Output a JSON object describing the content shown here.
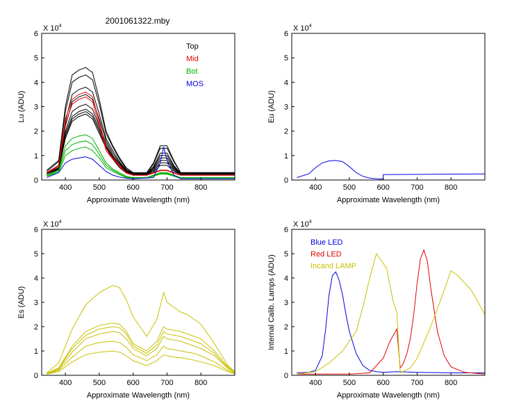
{
  "figure_title": "2001061322.mby",
  "colors": {
    "black": "#000000",
    "red": "#e00000",
    "green": "#00b000",
    "blue": "#0000e0",
    "yellow": "#c8c000"
  },
  "chart_data": [
    {
      "id": "lu",
      "type": "line",
      "title": "2001061322.mby",
      "xlabel": "Approximate Wavelength (nm)",
      "ylabel": "Lu (ADU)",
      "exponent_label": "X 10",
      "exponent_power": "4",
      "xlim": [
        330,
        900
      ],
      "ylim": [
        0,
        6
      ],
      "xticks": [
        400,
        500,
        600,
        700,
        800
      ],
      "yticks": [
        0,
        1,
        2,
        3,
        4,
        5,
        6
      ],
      "legend": [
        {
          "label": "Top",
          "color": "#000000"
        },
        {
          "label": "Mid",
          "color": "#e00000"
        },
        {
          "label": "Bot",
          "color": "#00b000"
        },
        {
          "label": "MOS",
          "color": "#0000e0"
        }
      ],
      "series": [
        {
          "name": "Top",
          "color": "#000000",
          "count": 8,
          "x": [
            345,
            380,
            400,
            420,
            440,
            460,
            480,
            500,
            520,
            540,
            560,
            580,
            600,
            640,
            660,
            680,
            700,
            720,
            740,
            900
          ],
          "yseries": [
            [
              0.4,
              0.8,
              3.0,
              4.3,
              4.5,
              4.6,
              4.4,
              3.3,
              2.0,
              1.4,
              0.9,
              0.5,
              0.3,
              0.3,
              0.7,
              1.4,
              1.4,
              0.8,
              0.3,
              0.3
            ],
            [
              0.35,
              0.75,
              2.8,
              4.0,
              4.2,
              4.3,
              4.1,
              3.1,
              1.9,
              1.35,
              0.85,
              0.45,
              0.28,
              0.28,
              0.65,
              1.3,
              1.3,
              0.75,
              0.3,
              0.3
            ],
            [
              0.3,
              0.6,
              2.4,
              3.5,
              3.7,
              3.8,
              3.6,
              2.7,
              1.7,
              1.2,
              0.75,
              0.4,
              0.26,
              0.26,
              0.55,
              1.1,
              1.1,
              0.6,
              0.28,
              0.28
            ],
            [
              0.3,
              0.55,
              2.2,
              3.2,
              3.4,
              3.5,
              3.3,
              2.5,
              1.6,
              1.1,
              0.7,
              0.38,
              0.25,
              0.25,
              0.5,
              1.0,
              1.0,
              0.55,
              0.27,
              0.27
            ],
            [
              0.28,
              0.5,
              2.0,
              2.8,
              3.0,
              3.1,
              2.9,
              2.2,
              1.5,
              1.0,
              0.65,
              0.35,
              0.24,
              0.24,
              0.45,
              0.9,
              0.9,
              0.5,
              0.26,
              0.26
            ],
            [
              0.26,
              0.48,
              1.9,
              2.6,
              2.8,
              2.9,
              2.7,
              2.1,
              1.4,
              0.95,
              0.6,
              0.33,
              0.23,
              0.23,
              0.4,
              0.8,
              0.8,
              0.45,
              0.25,
              0.25
            ],
            [
              0.25,
              0.45,
              1.8,
              2.5,
              2.7,
              2.8,
              2.6,
              2.0,
              1.35,
              0.9,
              0.55,
              0.3,
              0.22,
              0.22,
              0.35,
              0.7,
              0.7,
              0.4,
              0.24,
              0.24
            ],
            [
              0.25,
              0.42,
              1.7,
              2.4,
              2.6,
              2.7,
              2.5,
              1.9,
              1.3,
              0.85,
              0.5,
              0.28,
              0.21,
              0.21,
              0.3,
              0.6,
              0.6,
              0.35,
              0.23,
              0.23
            ]
          ]
        },
        {
          "name": "Mid",
          "color": "#e00000",
          "count": 2,
          "x": [
            345,
            380,
            400,
            420,
            440,
            460,
            480,
            500,
            520,
            540,
            560,
            580,
            600,
            640,
            660,
            680,
            700,
            720,
            740,
            900
          ],
          "yseries": [
            [
              0.3,
              0.6,
              2.5,
              3.3,
              3.5,
              3.6,
              3.4,
              2.4,
              1.3,
              0.9,
              0.6,
              0.3,
              0.2,
              0.2,
              0.3,
              0.4,
              0.4,
              0.3,
              0.2,
              0.2
            ],
            [
              0.28,
              0.55,
              2.3,
              3.1,
              3.3,
              3.4,
              3.2,
              2.25,
              1.2,
              0.85,
              0.55,
              0.28,
              0.19,
              0.19,
              0.28,
              0.38,
              0.38,
              0.28,
              0.19,
              0.19
            ]
          ]
        },
        {
          "name": "Bot",
          "color": "#00b000",
          "count": 3,
          "x": [
            345,
            380,
            400,
            420,
            440,
            460,
            480,
            500,
            520,
            540,
            560,
            580,
            600,
            640,
            660,
            680,
            700,
            720,
            740,
            900
          ],
          "yseries": [
            [
              0.2,
              0.4,
              1.4,
              1.7,
              1.8,
              1.85,
              1.7,
              1.2,
              0.7,
              0.45,
              0.3,
              0.15,
              0.1,
              0.1,
              0.2,
              0.3,
              0.3,
              0.2,
              0.1,
              0.1
            ],
            [
              0.18,
              0.35,
              1.2,
              1.45,
              1.55,
              1.6,
              1.45,
              1.05,
              0.6,
              0.4,
              0.25,
              0.12,
              0.09,
              0.09,
              0.18,
              0.27,
              0.27,
              0.18,
              0.09,
              0.09
            ],
            [
              0.16,
              0.3,
              1.0,
              1.2,
              1.3,
              1.35,
              1.2,
              0.9,
              0.5,
              0.35,
              0.22,
              0.1,
              0.08,
              0.08,
              0.15,
              0.24,
              0.24,
              0.15,
              0.08,
              0.08
            ]
          ]
        },
        {
          "name": "MOS",
          "color": "#0000e0",
          "count": 1,
          "x": [
            345,
            380,
            400,
            420,
            440,
            460,
            480,
            500,
            520,
            540,
            560,
            580,
            600,
            660,
            680,
            690,
            700,
            720,
            740,
            900
          ],
          "yseries": [
            [
              0.1,
              0.3,
              0.7,
              0.85,
              0.9,
              0.95,
              0.85,
              0.6,
              0.35,
              0.2,
              0.12,
              0.07,
              0.05,
              0.1,
              0.7,
              1.35,
              0.8,
              0.2,
              0.05,
              0.05
            ]
          ]
        }
      ]
    },
    {
      "id": "eu",
      "type": "line",
      "title": "",
      "xlabel": "Approximate Wavelength (nm)",
      "ylabel": "Eu  (ADU)",
      "exponent_label": "X 10",
      "exponent_power": "4",
      "xlim": [
        330,
        900
      ],
      "ylim": [
        0,
        6
      ],
      "xticks": [
        400,
        500,
        600,
        700,
        800
      ],
      "yticks": [
        0,
        1,
        2,
        3,
        4,
        5,
        6
      ],
      "legend": [],
      "series": [
        {
          "name": "Eu",
          "color": "#0000e0",
          "count": 1,
          "x": [
            345,
            380,
            400,
            420,
            440,
            460,
            480,
            500,
            520,
            540,
            560,
            580,
            599,
            600,
            900
          ],
          "yseries": [
            [
              0.1,
              0.25,
              0.5,
              0.7,
              0.78,
              0.8,
              0.75,
              0.55,
              0.3,
              0.15,
              0.08,
              0.05,
              0.03,
              0.22,
              0.25
            ]
          ]
        }
      ]
    },
    {
      "id": "es",
      "type": "line",
      "title": "",
      "xlabel": "Approximate Wavelength (nm)",
      "ylabel": "Es  (ADU)",
      "exponent_label": "X 10",
      "exponent_power": "4",
      "xlim": [
        330,
        900
      ],
      "ylim": [
        0,
        6
      ],
      "xticks": [
        400,
        500,
        600,
        700,
        800
      ],
      "yticks": [
        0,
        1,
        2,
        3,
        4,
        5,
        6
      ],
      "legend": [],
      "series": [
        {
          "name": "Es",
          "color": "#c8c000",
          "count": 6,
          "x": [
            345,
            380,
            420,
            460,
            500,
            540,
            560,
            580,
            600,
            640,
            670,
            690,
            700,
            720,
            740,
            760,
            780,
            800,
            840,
            880,
            900
          ],
          "yseries": [
            [
              0.1,
              0.5,
              1.9,
              2.9,
              3.4,
              3.7,
              3.6,
              3.1,
              2.4,
              1.6,
              2.3,
              3.4,
              3.0,
              2.8,
              2.6,
              2.5,
              2.3,
              2.1,
              1.3,
              0.4,
              0.15
            ],
            [
              0.08,
              0.3,
              1.2,
              1.8,
              2.05,
              2.15,
              2.1,
              1.8,
              1.3,
              1.0,
              1.4,
              2.0,
              1.9,
              1.85,
              1.8,
              1.7,
              1.6,
              1.5,
              1.0,
              0.35,
              0.12
            ],
            [
              0.08,
              0.28,
              1.1,
              1.65,
              1.9,
              2.0,
              1.95,
              1.7,
              1.2,
              0.9,
              1.25,
              1.8,
              1.7,
              1.65,
              1.6,
              1.5,
              1.4,
              1.3,
              0.9,
              0.3,
              0.1
            ],
            [
              0.07,
              0.25,
              0.95,
              1.5,
              1.7,
              1.8,
              1.75,
              1.5,
              1.1,
              0.8,
              1.1,
              1.6,
              1.5,
              1.45,
              1.4,
              1.3,
              1.2,
              1.1,
              0.8,
              0.28,
              0.1
            ],
            [
              0.06,
              0.2,
              0.75,
              1.2,
              1.35,
              1.4,
              1.35,
              1.15,
              0.85,
              0.6,
              0.85,
              1.2,
              1.1,
              1.05,
              1.0,
              0.95,
              0.9,
              0.8,
              0.55,
              0.2,
              0.08
            ],
            [
              0.05,
              0.15,
              0.55,
              0.85,
              0.95,
              1.0,
              0.95,
              0.8,
              0.6,
              0.4,
              0.6,
              0.85,
              0.8,
              0.75,
              0.72,
              0.68,
              0.62,
              0.55,
              0.4,
              0.15,
              0.06
            ]
          ]
        }
      ]
    },
    {
      "id": "lamps",
      "type": "line",
      "title": "",
      "xlabel": "Approximate Wavelength (nm)",
      "ylabel": "Internal Calib. Lamps (ADU)",
      "exponent_label": "X 10",
      "exponent_power": "4",
      "xlim": [
        330,
        900
      ],
      "ylim": [
        0,
        6
      ],
      "xticks": [
        400,
        500,
        600,
        700,
        800
      ],
      "yticks": [
        0,
        1,
        2,
        3,
        4,
        5,
        6
      ],
      "legend": [
        {
          "label": "Blue LED",
          "color": "#0000e0"
        },
        {
          "label": "Red LED",
          "color": "#e00000"
        },
        {
          "label": "Incand LAMP",
          "color": "#c8c000"
        }
      ],
      "series": [
        {
          "name": "Blue LED",
          "color": "#0000e0",
          "count": 1,
          "x": [
            345,
            380,
            400,
            420,
            430,
            440,
            450,
            460,
            470,
            480,
            490,
            500,
            520,
            540,
            560,
            580,
            600,
            640,
            700,
            800,
            900
          ],
          "yseries": [
            [
              0.1,
              0.12,
              0.2,
              0.8,
              1.9,
              3.3,
              4.1,
              4.25,
              3.9,
              3.3,
              2.5,
              1.8,
              0.9,
              0.4,
              0.2,
              0.15,
              0.12,
              0.15,
              0.12,
              0.1,
              0.1
            ]
          ]
        },
        {
          "name": "Red LED",
          "color": "#e00000",
          "count": 1,
          "x": [
            345,
            500,
            560,
            600,
            620,
            640,
            650,
            660,
            670,
            680,
            690,
            700,
            710,
            720,
            730,
            740,
            760,
            780,
            800,
            840,
            900
          ],
          "yseries": [
            [
              0.05,
              0.05,
              0.1,
              0.7,
              1.4,
              1.9,
              0.3,
              0.5,
              0.9,
              1.5,
              2.5,
              3.8,
              4.8,
              5.15,
              4.7,
              3.6,
              1.8,
              0.8,
              0.35,
              0.12,
              0.05
            ]
          ]
        },
        {
          "name": "Incand LAMP",
          "color": "#c8c000",
          "count": 1,
          "x": [
            345,
            400,
            440,
            480,
            500,
            520,
            540,
            560,
            580,
            600,
            610,
            620,
            630,
            640,
            650,
            680,
            700,
            740,
            780,
            800,
            820,
            860,
            900
          ],
          "yseries": [
            [
              0.05,
              0.15,
              0.5,
              1.0,
              1.4,
              1.8,
              2.8,
              4.0,
              5.0,
              4.6,
              4.4,
              3.7,
              3.0,
              2.6,
              0.1,
              0.3,
              0.7,
              2.0,
              3.5,
              4.3,
              4.1,
              3.5,
              2.5
            ]
          ]
        }
      ]
    }
  ]
}
